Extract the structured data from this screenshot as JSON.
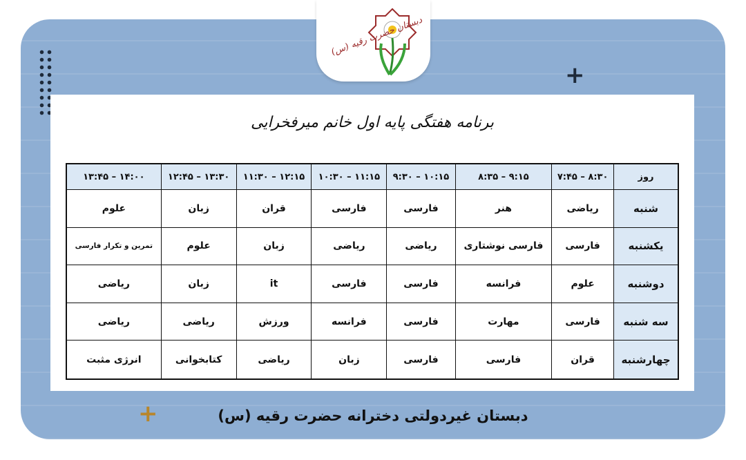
{
  "logo": {
    "text": "دبستان حضرت رقیه (س)"
  },
  "title": "برنامه هفتگی پایه اول خانم میرفخرایی",
  "table": {
    "headers": [
      "روز",
      "۷:۴۵ – ۸:۳۰",
      "۸:۳۵ – ۹:۱۵",
      "۹:۳۰ – ۱۰:۱۵",
      "۱۰:۳۰ – ۱۱:۱۵",
      "۱۱:۳۰ – ۱۲:۱۵",
      "۱۲:۴۵ – ۱۳:۳۰",
      "۱۳:۴۵ – ۱۴:۰۰"
    ],
    "rows": [
      {
        "day": "شنبه",
        "cells": [
          "ریاضی",
          "هنر",
          "فارسی",
          "فارسی",
          "قران",
          "زبان",
          "علوم"
        ]
      },
      {
        "day": "یکشنبه",
        "cells": [
          "فارسی",
          "فارسی نوشتاری",
          "ریاضی",
          "ریاضی",
          "زبان",
          "علوم",
          "تمرین و تکرار فارسی"
        ]
      },
      {
        "day": "دوشنبه",
        "cells": [
          "علوم",
          "فرانسه",
          "فارسی",
          "فارسی",
          "it",
          "زبان",
          "ریاضی"
        ]
      },
      {
        "day": "سه شنبه",
        "cells": [
          "فارسی",
          "مهارت",
          "فارسی",
          "فرانسه",
          "ورزش",
          "ریاضی",
          "ریاضی"
        ]
      },
      {
        "day": "چهارشنبه",
        "cells": [
          "قران",
          "فارسی",
          "فارسی",
          "زبان",
          "ریاضی",
          "کتابخوانی",
          "انرژی مثبت"
        ]
      }
    ]
  },
  "footer": "دبستان غیردولتی دخترانه حضرت رقیه (س)",
  "colors": {
    "background": "#8eaed3",
    "header_fill": "#dbe8f5",
    "plus_dark": "#1e2a3a",
    "plus_gold": "#b8862b"
  }
}
